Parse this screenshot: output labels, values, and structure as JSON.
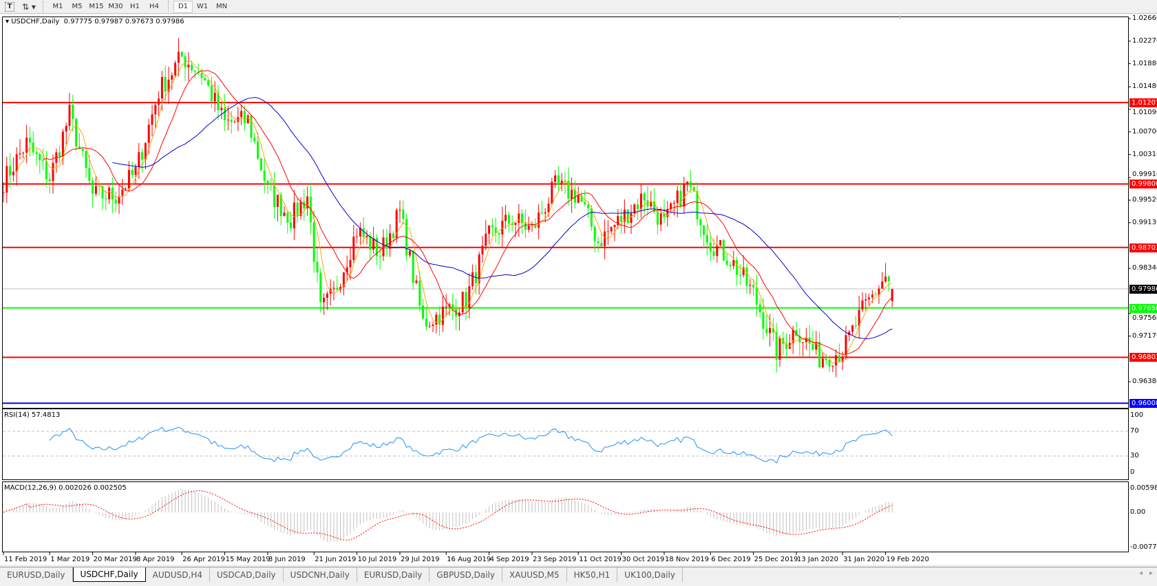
{
  "toolbar": {
    "icons": [
      "text-tool-icon",
      "cursor-tool-icon"
    ],
    "timeframes": [
      "M1",
      "M5",
      "M15",
      "M30",
      "H1",
      "H4",
      "D1",
      "W1",
      "MN"
    ],
    "active_timeframe": "D1"
  },
  "chart": {
    "header": "USDCHF,Daily",
    "ohlc": "0.97775 0.97987 0.97673 0.97986",
    "up_color": "#ff0000",
    "down_color": "#00ff00",
    "price_ticks": [
      "1.02660",
      "1.02270",
      "1.01880",
      "1.01480",
      "1.01090",
      "1.00700",
      "1.00310",
      "0.99910",
      "0.99520",
      "0.99130",
      "0.98340",
      "0.97560",
      "0.97170",
      "0.96380"
    ],
    "levels": [
      {
        "price": "1.01207",
        "color": "#ff0000"
      },
      {
        "price": "0.99800",
        "color": "#ff0000"
      },
      {
        "price": "0.98703",
        "color": "#ff0000"
      },
      {
        "price": "0.97658",
        "color": "#00ff00"
      },
      {
        "price": "0.96803",
        "color": "#ff0000"
      },
      {
        "price": "0.96008",
        "color": "#0000ff"
      }
    ],
    "current_price": {
      "price": "0.97986",
      "color": "#000000"
    },
    "date_labels": [
      "11 Feb 2019",
      "1 Mar 2019",
      "20 Mar 2019",
      "8 Apr 2019",
      "26 Apr 2019",
      "15 May 2019",
      "3 Jun 2019",
      "21 Jun 2019",
      "10 Jul 2019",
      "29 Jul 2019",
      "16 Aug 2019",
      "4 Sep 2019",
      "23 Sep 2019",
      "11 Oct 2019",
      "30 Oct 2019",
      "18 Nov 2019",
      "6 Dec 2019",
      "25 Dec 2019",
      "13 Jan 2020",
      "31 Jan 2020",
      "19 Feb 2020"
    ]
  },
  "rsi": {
    "label": "RSI(14) 57.4813",
    "ticks": [
      "100",
      "70",
      "30",
      "0"
    ],
    "color": "#1e90ff"
  },
  "macd": {
    "label": "MACD(12,26,9) 0.002026 0.002505",
    "ticks": [
      "0.005986",
      "0.00",
      "-0.007733"
    ],
    "signal_color": "#ff0000",
    "hist_color": "#c0c0c0"
  },
  "chart_data": {
    "type": "candlestick",
    "symbol": "USDCHF",
    "timeframe": "Daily",
    "last_bar": {
      "open": 0.97775,
      "high": 0.97987,
      "low": 0.97673,
      "close": 0.97986
    },
    "ylim": [
      0.96,
      1.0266
    ],
    "close_anchors": [
      {
        "date": "2019-02-11",
        "close": 0.9985
      },
      {
        "date": "2019-02-20",
        "close": 1.005
      },
      {
        "date": "2019-03-01",
        "close": 0.999
      },
      {
        "date": "2019-03-11",
        "close": 1.01
      },
      {
        "date": "2019-03-20",
        "close": 0.996
      },
      {
        "date": "2019-03-29",
        "close": 0.996
      },
      {
        "date": "2019-04-08",
        "close": 1.0
      },
      {
        "date": "2019-04-17",
        "close": 1.014
      },
      {
        "date": "2019-04-26",
        "close": 1.02
      },
      {
        "date": "2019-05-06",
        "close": 1.017
      },
      {
        "date": "2019-05-15",
        "close": 1.0085
      },
      {
        "date": "2019-05-24",
        "close": 1.009
      },
      {
        "date": "2019-06-03",
        "close": 0.997
      },
      {
        "date": "2019-06-12",
        "close": 0.992
      },
      {
        "date": "2019-06-19",
        "close": 0.996
      },
      {
        "date": "2019-06-25",
        "close": 0.976
      },
      {
        "date": "2019-07-01",
        "close": 0.979
      },
      {
        "date": "2019-07-10",
        "close": 0.99
      },
      {
        "date": "2019-07-19",
        "close": 0.986
      },
      {
        "date": "2019-07-29",
        "close": 0.993
      },
      {
        "date": "2019-08-07",
        "close": 0.974
      },
      {
        "date": "2019-08-16",
        "close": 0.976
      },
      {
        "date": "2019-08-26",
        "close": 0.978
      },
      {
        "date": "2019-09-04",
        "close": 0.989
      },
      {
        "date": "2019-09-13",
        "close": 0.992
      },
      {
        "date": "2019-09-23",
        "close": 0.99
      },
      {
        "date": "2019-10-02",
        "close": 0.9975
      },
      {
        "date": "2019-10-11",
        "close": 0.996
      },
      {
        "date": "2019-10-21",
        "close": 0.988
      },
      {
        "date": "2019-10-30",
        "close": 0.992
      },
      {
        "date": "2019-11-08",
        "close": 0.996
      },
      {
        "date": "2019-11-18",
        "close": 0.991
      },
      {
        "date": "2019-11-27",
        "close": 0.998
      },
      {
        "date": "2019-12-06",
        "close": 0.988
      },
      {
        "date": "2019-12-16",
        "close": 0.985
      },
      {
        "date": "2019-12-25",
        "close": 0.979
      },
      {
        "date": "2020-01-03",
        "close": 0.969
      },
      {
        "date": "2020-01-13",
        "close": 0.973
      },
      {
        "date": "2020-01-22",
        "close": 0.968
      },
      {
        "date": "2020-01-31",
        "close": 0.969
      },
      {
        "date": "2020-02-10",
        "close": 0.976
      },
      {
        "date": "2020-02-19",
        "close": 0.982
      },
      {
        "date": "2020-02-21",
        "close": 0.97986
      }
    ]
  },
  "tabs": [
    "EURUSD,Daily",
    "USDCHF,Daily",
    "AUDUSD,H4",
    "USDCAD,Daily",
    "USDCNH,Daily",
    "EURUSD,Daily",
    "GBPUSD,Daily",
    "XAUUSD,M5",
    "HK50,H1",
    "UK100,Daily"
  ],
  "active_tab": 1
}
